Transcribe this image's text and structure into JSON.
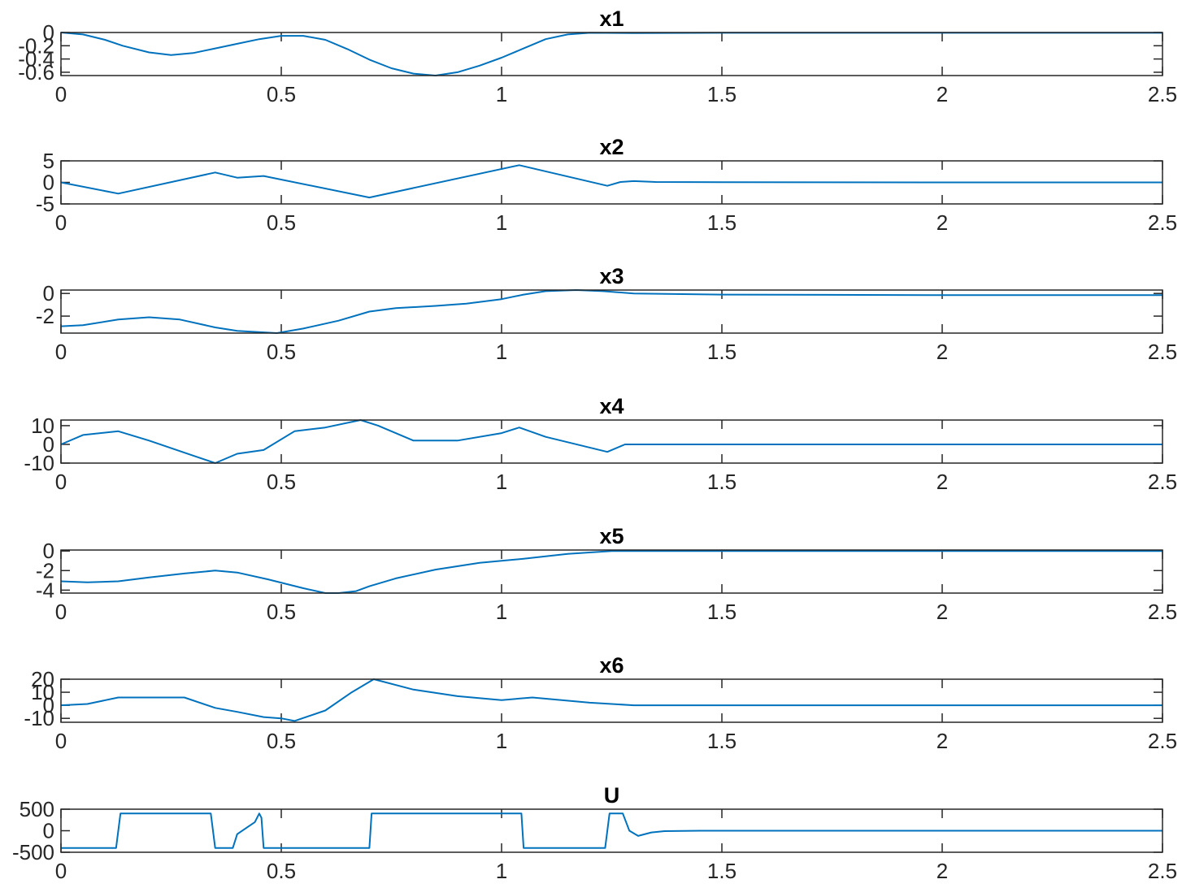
{
  "chart_data": [
    {
      "type": "line",
      "title": "x1",
      "xlim": [
        0,
        2.5
      ],
      "ylim": [
        -0.65,
        0
      ],
      "xticks": [
        0,
        0.5,
        1,
        1.5,
        2,
        2.5
      ],
      "xtick_labels": [
        "0",
        "0.5",
        "1",
        "1.5",
        "2",
        "2.5"
      ],
      "yticks": [
        0,
        -0.2,
        -0.4,
        -0.6
      ],
      "ytick_labels": [
        "0",
        "-0.2",
        "-0.4",
        "-0.6"
      ],
      "series": [
        {
          "color": "#0072BD",
          "x": [
            0,
            0.05,
            0.1,
            0.14,
            0.2,
            0.25,
            0.3,
            0.35,
            0.4,
            0.45,
            0.5,
            0.55,
            0.6,
            0.65,
            0.7,
            0.75,
            0.8,
            0.85,
            0.9,
            0.95,
            1.0,
            1.05,
            1.1,
            1.15,
            1.2,
            1.3,
            1.5,
            2.0,
            2.5
          ],
          "y": [
            0,
            -0.03,
            -0.11,
            -0.2,
            -0.3,
            -0.34,
            -0.31,
            -0.24,
            -0.17,
            -0.1,
            -0.05,
            -0.05,
            -0.11,
            -0.25,
            -0.41,
            -0.54,
            -0.62,
            -0.65,
            -0.6,
            -0.5,
            -0.38,
            -0.24,
            -0.1,
            -0.03,
            -0.005,
            -0.01,
            -0.005,
            -0.005,
            -0.005
          ]
        }
      ]
    },
    {
      "type": "line",
      "title": "x2",
      "xlim": [
        0,
        2.5
      ],
      "ylim": [
        -5,
        5
      ],
      "xticks": [
        0,
        0.5,
        1,
        1.5,
        2,
        2.5
      ],
      "xtick_labels": [
        "0",
        "0.5",
        "1",
        "1.5",
        "2",
        "2.5"
      ],
      "yticks": [
        5,
        0,
        -5
      ],
      "ytick_labels": [
        "5",
        "0",
        "-5"
      ],
      "series": [
        {
          "color": "#0072BD",
          "x": [
            0,
            0.13,
            0.35,
            0.4,
            0.46,
            0.7,
            1.04,
            1.24,
            1.27,
            1.3,
            1.35,
            1.5,
            2.0,
            2.5
          ],
          "y": [
            0,
            -2.6,
            2.3,
            1.1,
            1.5,
            -3.5,
            4.0,
            -0.8,
            0.1,
            0.3,
            0.1,
            0.05,
            0,
            0
          ]
        }
      ]
    },
    {
      "type": "line",
      "title": "x3",
      "xlim": [
        0,
        2.5
      ],
      "ylim": [
        -3.5,
        0.3
      ],
      "xticks": [
        0,
        0.5,
        1,
        1.5,
        2,
        2.5
      ],
      "xtick_labels": [
        "0",
        "0.5",
        "1",
        "1.5",
        "2",
        "2.5"
      ],
      "yticks": [
        0,
        -2
      ],
      "ytick_labels": [
        "0",
        "-2"
      ],
      "series": [
        {
          "color": "#0072BD",
          "x": [
            0,
            0.05,
            0.13,
            0.2,
            0.27,
            0.35,
            0.4,
            0.49,
            0.55,
            0.63,
            0.7,
            0.76,
            0.85,
            0.92,
            1.0,
            1.05,
            1.1,
            1.17,
            1.23,
            1.3,
            1.5,
            2.0,
            2.5
          ],
          "y": [
            -2.9,
            -2.8,
            -2.3,
            -2.1,
            -2.3,
            -3.0,
            -3.3,
            -3.5,
            -3.1,
            -2.4,
            -1.6,
            -1.3,
            -1.1,
            -0.9,
            -0.5,
            -0.1,
            0.2,
            0.3,
            0.2,
            0.0,
            -0.1,
            -0.15,
            -0.15
          ]
        }
      ]
    },
    {
      "type": "line",
      "title": "x4",
      "xlim": [
        0,
        2.5
      ],
      "ylim": [
        -10,
        13
      ],
      "xticks": [
        0,
        0.5,
        1,
        1.5,
        2,
        2.5
      ],
      "xtick_labels": [
        "0",
        "0.5",
        "1",
        "1.5",
        "2",
        "2.5"
      ],
      "yticks": [
        10,
        0,
        -10
      ],
      "ytick_labels": [
        "10",
        "0",
        "-10"
      ],
      "series": [
        {
          "color": "#0072BD",
          "x": [
            0,
            0.05,
            0.13,
            0.2,
            0.3,
            0.35,
            0.4,
            0.46,
            0.53,
            0.6,
            0.68,
            0.72,
            0.8,
            0.9,
            1.0,
            1.04,
            1.1,
            1.24,
            1.28,
            1.32,
            1.5,
            2.0,
            2.5
          ],
          "y": [
            0,
            5,
            7,
            2,
            -6,
            -10,
            -5,
            -3,
            7,
            9,
            13,
            10,
            2,
            2,
            6,
            9,
            4,
            -4,
            0,
            0,
            0,
            0,
            0
          ]
        }
      ]
    },
    {
      "type": "line",
      "title": "x5",
      "xlim": [
        0,
        2.5
      ],
      "ylim": [
        -4.3,
        0.1
      ],
      "xticks": [
        0,
        0.5,
        1,
        1.5,
        2,
        2.5
      ],
      "xtick_labels": [
        "0",
        "0.5",
        "1",
        "1.5",
        "2",
        "2.5"
      ],
      "yticks": [
        0,
        -2,
        -4
      ],
      "ytick_labels": [
        "0",
        "-2",
        "-4"
      ],
      "series": [
        {
          "color": "#0072BD",
          "x": [
            0,
            0.06,
            0.13,
            0.2,
            0.28,
            0.35,
            0.4,
            0.47,
            0.55,
            0.6,
            0.63,
            0.67,
            0.7,
            0.76,
            0.85,
            0.95,
            1.05,
            1.15,
            1.25,
            1.4,
            2.0,
            2.5
          ],
          "y": [
            -3.1,
            -3.2,
            -3.1,
            -2.7,
            -2.3,
            -2.0,
            -2.2,
            -2.9,
            -3.8,
            -4.3,
            -4.3,
            -4.1,
            -3.6,
            -2.8,
            -1.9,
            -1.2,
            -0.8,
            -0.3,
            0.0,
            0.0,
            0.0,
            0.0
          ]
        }
      ]
    },
    {
      "type": "line",
      "title": "x6",
      "xlim": [
        0,
        2.5
      ],
      "ylim": [
        -13,
        20
      ],
      "xticks": [
        0,
        0.5,
        1,
        1.5,
        2,
        2.5
      ],
      "xtick_labels": [
        "0",
        "0.5",
        "1",
        "1.5",
        "2",
        "2.5"
      ],
      "yticks": [
        20,
        10,
        0,
        -10
      ],
      "ytick_labels": [
        "20",
        "10",
        "0",
        "-10"
      ],
      "series": [
        {
          "color": "#0072BD",
          "x": [
            0,
            0.06,
            0.13,
            0.2,
            0.28,
            0.35,
            0.4,
            0.46,
            0.5,
            0.53,
            0.6,
            0.66,
            0.71,
            0.8,
            0.9,
            1.0,
            1.07,
            1.2,
            1.3,
            1.5,
            2.0,
            2.5
          ],
          "y": [
            0,
            1,
            6,
            6,
            6,
            -2,
            -5,
            -9,
            -10,
            -12,
            -4,
            10,
            20,
            12,
            7,
            4,
            6,
            2,
            0,
            0,
            0,
            0
          ]
        }
      ]
    },
    {
      "type": "line",
      "title": "U",
      "xlim": [
        0,
        2.5
      ],
      "ylim": [
        -500,
        500
      ],
      "xticks": [
        0,
        0.5,
        1,
        1.5,
        2,
        2.5
      ],
      "xtick_labels": [
        "0",
        "0.5",
        "1",
        "1.5",
        "2",
        "2.5"
      ],
      "yticks": [
        500,
        0,
        -500
      ],
      "ytick_labels": [
        "500",
        "0",
        "-500"
      ],
      "series": [
        {
          "color": "#0072BD",
          "x": [
            0,
            0.125,
            0.135,
            0.34,
            0.35,
            0.39,
            0.4,
            0.44,
            0.45,
            0.455,
            0.46,
            0.7,
            0.705,
            1.045,
            1.05,
            1.235,
            1.245,
            1.275,
            1.29,
            1.31,
            1.34,
            1.37,
            1.45,
            2.0,
            2.5
          ],
          "y": [
            -400,
            -400,
            400,
            400,
            -400,
            -400,
            -80,
            200,
            400,
            300,
            -400,
            -400,
            400,
            400,
            -400,
            -400,
            400,
            400,
            0,
            -120,
            -40,
            -10,
            0,
            0,
            0
          ]
        }
      ]
    }
  ]
}
